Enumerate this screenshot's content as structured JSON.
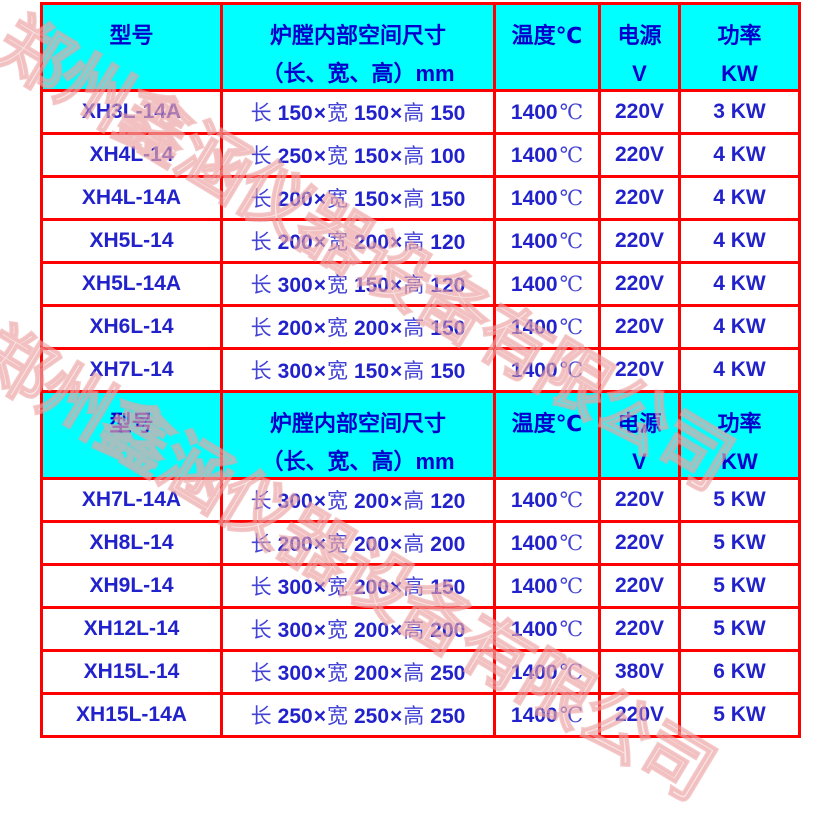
{
  "watermark": {
    "company": "郑州鑫涵仪器设备有限公司"
  },
  "table": {
    "columns": {
      "model": "型号",
      "chamber_line1": "炉膛内部空间尺寸",
      "chamber_line2": "（长、宽、高）mm",
      "temperature": "温度℃",
      "power_supply_line1": "电源",
      "power_supply_line2": "V",
      "power_line1": "功率",
      "power_line2": "KW"
    },
    "dim_labels": {
      "length": "长",
      "width": "宽",
      "height": "高",
      "times": "×"
    },
    "sections": [
      {
        "rows": [
          {
            "model": "XH3L-14A",
            "length": "150",
            "width": "150",
            "height": "150",
            "temperature": "1400",
            "temp_unit": "℃",
            "voltage": "220V",
            "power": "3 KW"
          },
          {
            "model": "XH4L-14",
            "length": "250",
            "width": "150",
            "height": "100",
            "temperature": "1400",
            "temp_unit": "℃",
            "voltage": "220V",
            "power": "4 KW"
          },
          {
            "model": "XH4L-14A",
            "length": "200",
            "width": "150",
            "height": "150",
            "temperature": "1400",
            "temp_unit": "℃",
            "voltage": "220V",
            "power": "4 KW"
          },
          {
            "model": "XH5L-14",
            "length": "200",
            "width": "200",
            "height": "120",
            "temperature": "1400",
            "temp_unit": "℃",
            "voltage": "220V",
            "power": "4 KW"
          },
          {
            "model": "XH5L-14A",
            "length": "300",
            "width": "150",
            "height": "120",
            "temperature": "1400",
            "temp_unit": "℃",
            "voltage": "220V",
            "power": "4 KW"
          },
          {
            "model": "XH6L-14",
            "length": "200",
            "width": "200",
            "height": "150",
            "temperature": "1400",
            "temp_unit": "℃",
            "voltage": "220V",
            "power": "4 KW"
          },
          {
            "model": "XH7L-14",
            "length": "300",
            "width": "150",
            "height": "150",
            "temperature": "1400",
            "temp_unit": "℃",
            "voltage": "220V",
            "power": "4 KW"
          }
        ]
      },
      {
        "rows": [
          {
            "model": "XH7L-14A",
            "length": "300",
            "width": "200",
            "height": "120",
            "temperature": "1400",
            "temp_unit": "℃",
            "voltage": "220V",
            "power": "5 KW"
          },
          {
            "model": "XH8L-14",
            "length": "200",
            "width": "200",
            "height": "200",
            "temperature": "1400",
            "temp_unit": "℃",
            "voltage": "220V",
            "power": "5 KW"
          },
          {
            "model": "XH9L-14",
            "length": "300",
            "width": "200",
            "height": "150",
            "temperature": "1400",
            "temp_unit": "℃",
            "voltage": "220V",
            "power": "5 KW"
          },
          {
            "model": "XH12L-14",
            "length": "300",
            "width": "200",
            "height": "200",
            "temperature": "1400",
            "temp_unit": "℃",
            "voltage": "220V",
            "power": "5 KW"
          },
          {
            "model": "XH15L-14",
            "length": "300",
            "width": "200",
            "height": "250",
            "temperature": "1400",
            "temp_unit": "℃",
            "voltage": "380V",
            "power": "6 KW"
          },
          {
            "model": "XH15L-14A",
            "length": "250",
            "width": "250",
            "height": "250",
            "temperature": "1400",
            "temp_unit": "℃",
            "voltage": "220V",
            "power": "5 KW"
          }
        ]
      }
    ]
  }
}
